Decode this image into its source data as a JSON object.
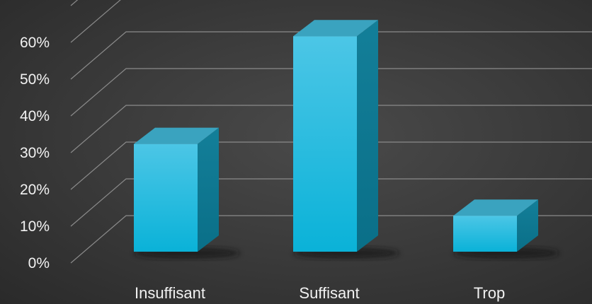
{
  "chart_data": {
    "type": "bar",
    "style": "3d-column",
    "categories": [
      "Insuffisant",
      "Suffisant",
      "Trop"
    ],
    "values": [
      30,
      60,
      10
    ],
    "y_ticks": [
      "0%",
      "10%",
      "20%",
      "30%",
      "40%",
      "50%",
      "60%"
    ],
    "ylim": [
      0,
      70
    ],
    "y_unit": "%",
    "grid": true,
    "legend": "none",
    "colors": {
      "front_top": "#4cc6e6",
      "front_bottom": "#0ab2d8",
      "side": "#0b7a95",
      "top": "#3aa3bf",
      "grid": "#8a8a8a",
      "text": "#f2f2f2",
      "background": "#3c3c3c"
    }
  }
}
